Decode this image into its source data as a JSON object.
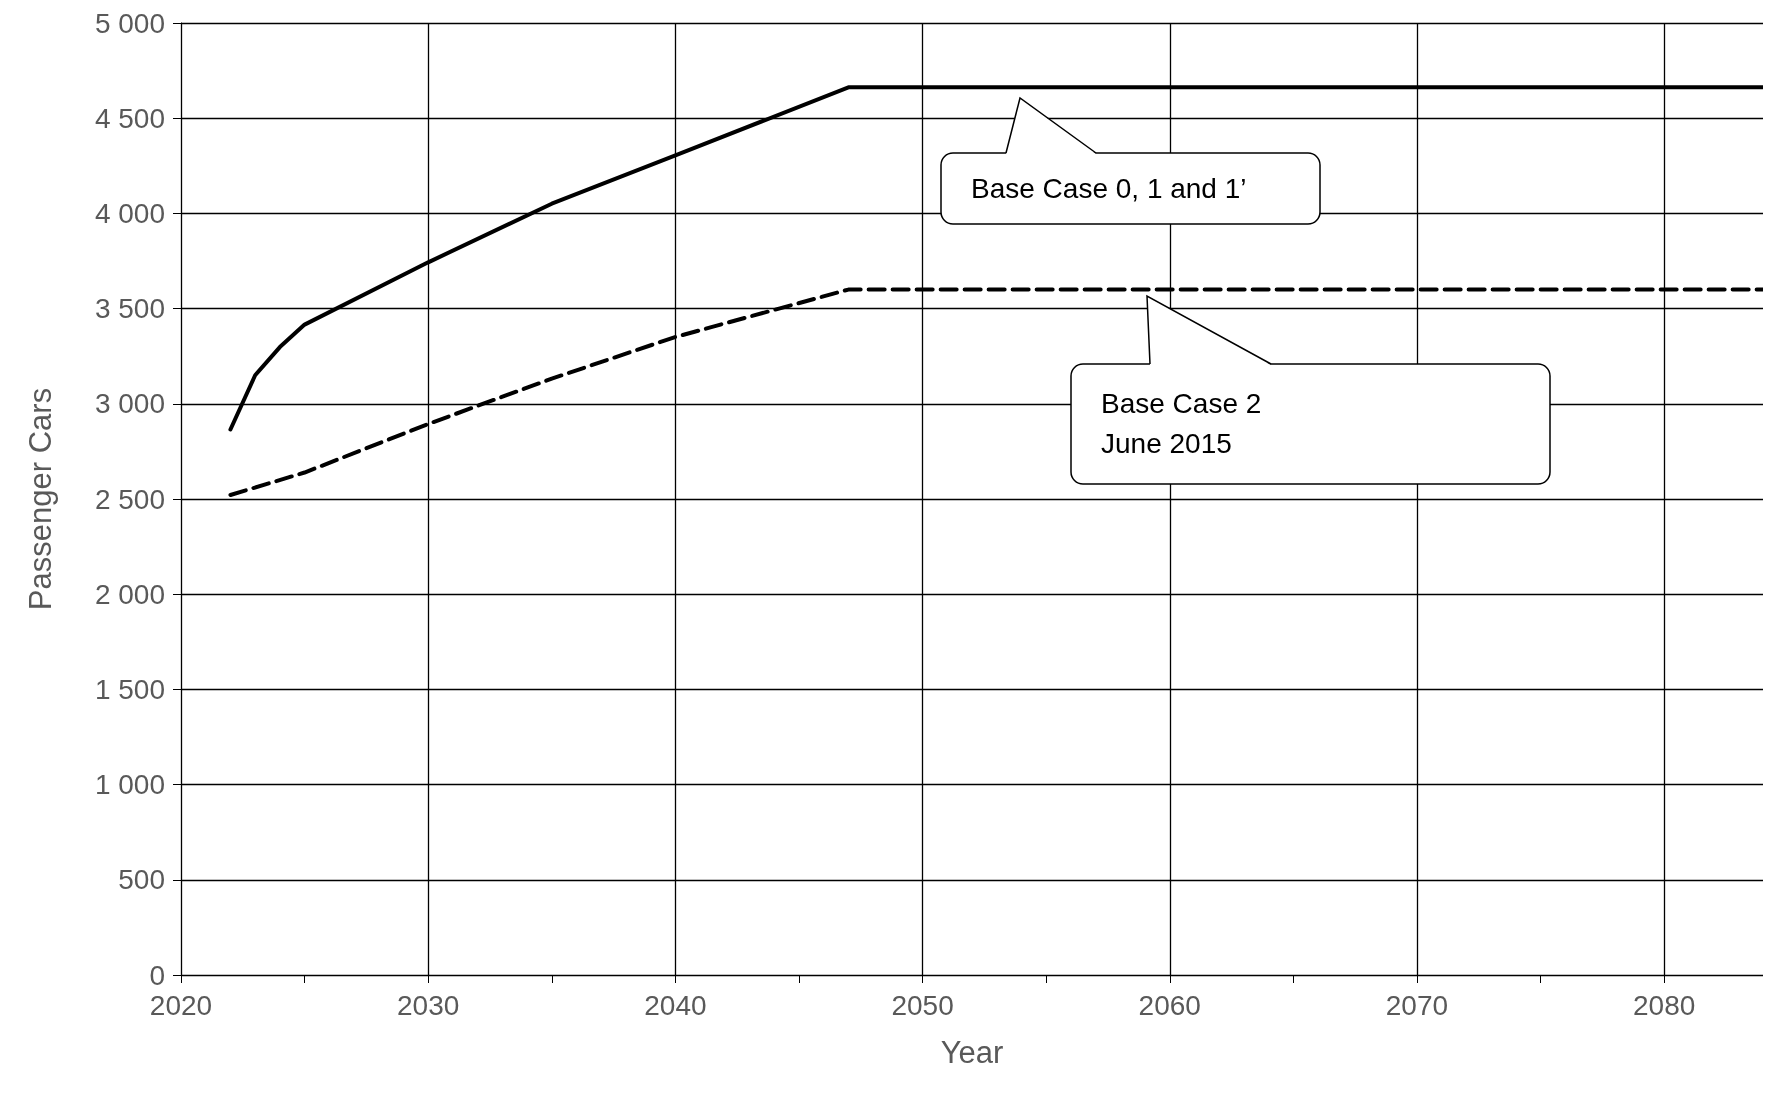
{
  "chart_data": {
    "type": "line",
    "xlabel": "Year",
    "ylabel": "Passenger Cars",
    "xlim": [
      2020,
      2084
    ],
    "xticks": [
      2020,
      {
        "value": 2025,
        "label": null
      },
      2030,
      {
        "value": 2035,
        "label": null
      },
      2040,
      {
        "value": 2045,
        "label": null
      },
      2050,
      {
        "value": 2055,
        "label": null
      },
      2060,
      {
        "value": 2065,
        "label": null
      },
      2070,
      {
        "value": 2075,
        "label": null
      },
      2080
    ],
    "ylim": [
      0,
      5000
    ],
    "yticks": [
      0,
      500,
      {
        "value": 1000,
        "label": "1 000"
      },
      {
        "value": 1500,
        "label": "1 500"
      },
      {
        "value": 2000,
        "label": "2 000"
      },
      {
        "value": 2500,
        "label": "2 500"
      },
      {
        "value": 3000,
        "label": "3 000"
      },
      {
        "value": 3500,
        "label": "3 500"
      },
      {
        "value": 4000,
        "label": "4 000"
      },
      {
        "value": 4500,
        "label": "4 500"
      },
      {
        "value": 5000,
        "label": "5 000"
      }
    ],
    "grid": true,
    "marker": "none",
    "series": [
      {
        "color": "#000000",
        "line_style": "solid",
        "x": [
          2022,
          2023,
          2024,
          2025,
          2030,
          2035,
          2040,
          2047,
          2084
        ],
        "values": [
          2865,
          3150,
          3298,
          3416,
          3743,
          4051,
          4305,
          4662,
          4662
        ]
      },
      {
        "color": "#000000",
        "line_style": "dashed",
        "x": [
          2022,
          2025,
          2030,
          2035,
          2040,
          2047,
          2084
        ],
        "values": [
          2521,
          2639,
          2894,
          3132,
          3351,
          3600,
          3600
        ]
      }
    ],
    "annotations": [
      "Base Case 0, 1 and 1’",
      "Base Case 2\nJune 2015"
    ]
  }
}
